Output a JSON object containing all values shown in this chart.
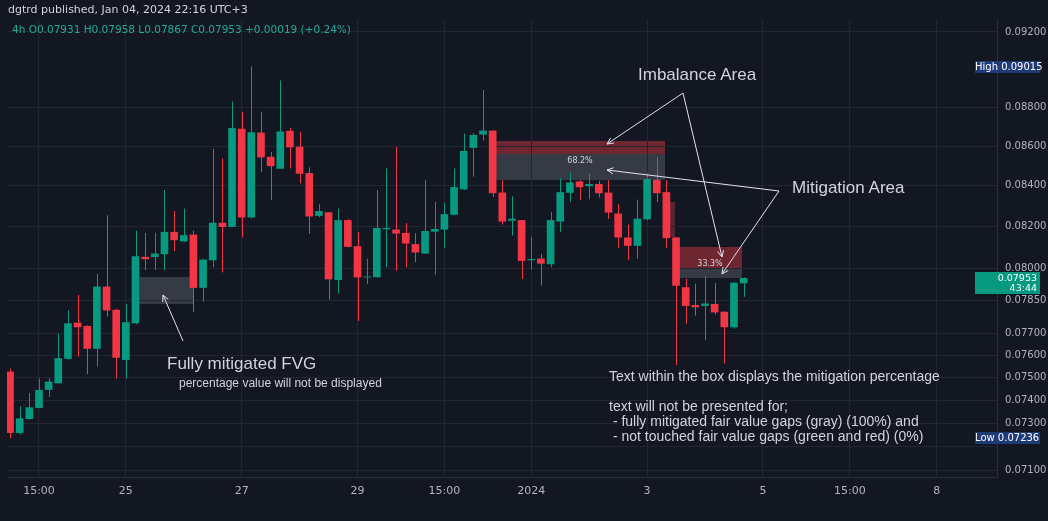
{
  "chart_data": {
    "type": "candlestick",
    "title": "4h O0.07931 H0.07958 L0.07867 C0.07953 +0.00019 (+0.24%)",
    "subtitle": "dgtrd published, Jan 04, 2024 22:16 UTC+3",
    "x": [
      "2023-12-23T03:00",
      "2023-12-23T07:00",
      "2023-12-23T11:00",
      "2023-12-23T15:00",
      "2023-12-23T19:00",
      "2023-12-23T23:00",
      "2023-12-24T03:00",
      "2023-12-24T07:00",
      "2023-12-24T11:00",
      "2023-12-24T15:00",
      "2023-12-24T19:00",
      "2023-12-24T23:00",
      "2023-12-25T03:00",
      "2023-12-25T07:00",
      "2023-12-25T11:00",
      "2023-12-25T15:00",
      "2023-12-25T19:00",
      "2023-12-25T23:00",
      "2023-12-26T03:00",
      "2023-12-26T07:00",
      "2023-12-26T11:00",
      "2023-12-26T15:00",
      "2023-12-26T19:00",
      "2023-12-26T23:00",
      "2023-12-27T03:00",
      "2023-12-27T07:00",
      "2023-12-27T11:00",
      "2023-12-27T15:00",
      "2023-12-27T19:00",
      "2023-12-27T23:00",
      "2023-12-28T03:00",
      "2023-12-28T07:00",
      "2023-12-28T11:00",
      "2023-12-28T15:00",
      "2023-12-28T19:00",
      "2023-12-28T23:00",
      "2023-12-29T03:00",
      "2023-12-29T07:00",
      "2023-12-29T11:00",
      "2023-12-29T15:00",
      "2023-12-29T19:00",
      "2023-12-29T23:00",
      "2023-12-30T03:00",
      "2023-12-30T07:00",
      "2023-12-30T11:00",
      "2023-12-30T15:00",
      "2023-12-30T19:00",
      "2023-12-30T23:00",
      "2023-12-31T03:00",
      "2023-12-31T07:00",
      "2023-12-31T11:00",
      "2023-12-31T15:00",
      "2023-12-31T19:00",
      "2023-12-31T23:00",
      "2024-01-01T03:00",
      "2024-01-01T07:00",
      "2024-01-01T11:00",
      "2024-01-01T15:00",
      "2024-01-01T19:00",
      "2024-01-01T23:00",
      "2024-01-02T03:00",
      "2024-01-02T07:00",
      "2024-01-02T11:00",
      "2024-01-02T15:00",
      "2024-01-02T19:00",
      "2024-01-02T23:00",
      "2024-01-03T03:00",
      "2024-01-03T07:00",
      "2024-01-03T11:00",
      "2024-01-03T15:00",
      "2024-01-03T19:00",
      "2024-01-03T23:00",
      "2024-01-04T03:00",
      "2024-01-04T07:00",
      "2024-01-04T11:00",
      "2024-01-04T15:00",
      "2024-01-04T19:00"
    ],
    "ohlc": [
      [
        0.07525,
        0.0754,
        0.07236,
        0.0726
      ],
      [
        0.0726,
        0.07374,
        0.07252,
        0.0732
      ],
      [
        0.0732,
        0.07432,
        0.07318,
        0.07368
      ],
      [
        0.07368,
        0.07496,
        0.07365,
        0.07444
      ],
      [
        0.07447,
        0.07497,
        0.07415,
        0.07481
      ],
      [
        0.07476,
        0.07697,
        0.07475,
        0.07585
      ],
      [
        0.07585,
        0.07805,
        0.0758,
        0.07743
      ],
      [
        0.07746,
        0.07875,
        0.07593,
        0.07728
      ],
      [
        0.07731,
        0.07735,
        0.07515,
        0.0763
      ],
      [
        0.0763,
        0.07974,
        0.07548,
        0.07913
      ],
      [
        0.07913,
        0.08255,
        0.07775,
        0.07805
      ],
      [
        0.07805,
        0.0781,
        0.07496,
        0.0759
      ],
      [
        0.0758,
        0.07833,
        0.07496,
        0.07748
      ],
      [
        0.07746,
        0.0818,
        0.0774,
        0.08056
      ],
      [
        0.08053,
        0.0817,
        0.07992,
        0.08045
      ],
      [
        0.08055,
        0.0817,
        0.07992,
        0.08069
      ],
      [
        0.08069,
        0.08379,
        0.07992,
        0.08173
      ],
      [
        0.08173,
        0.08276,
        0.08082,
        0.08136
      ],
      [
        0.0813,
        0.08288,
        0.08125,
        0.08157
      ],
      [
        0.0816,
        0.0818,
        0.07797,
        0.0791
      ],
      [
        0.0791,
        0.08045,
        0.07845,
        0.0804
      ],
      [
        0.0804,
        0.08587,
        0.08005,
        0.08217
      ],
      [
        0.08217,
        0.08537,
        0.07981,
        0.082
      ],
      [
        0.082,
        0.0883,
        0.082,
        0.0869
      ],
      [
        0.08686,
        0.08776,
        0.08148,
        0.08246
      ],
      [
        0.08246,
        0.09015,
        0.0824,
        0.08669
      ],
      [
        0.08667,
        0.08776,
        0.08469,
        0.08544
      ],
      [
        0.08544,
        0.0857,
        0.08329,
        0.085
      ],
      [
        0.08487,
        0.0894,
        0.08487,
        0.08672
      ],
      [
        0.08676,
        0.08692,
        0.08487,
        0.08595
      ],
      [
        0.08595,
        0.08672,
        0.08412,
        0.08462
      ],
      [
        0.08462,
        0.08492,
        0.08165,
        0.08251
      ],
      [
        0.08254,
        0.08309,
        0.08246,
        0.08274
      ],
      [
        0.08268,
        0.0827,
        0.07854,
        0.0795
      ],
      [
        0.07947,
        0.08288,
        0.07882,
        0.0823
      ],
      [
        0.0823,
        0.08238,
        0.081,
        0.08104
      ],
      [
        0.08104,
        0.08173,
        0.07755,
        0.07959
      ],
      [
        0.07959,
        0.08045,
        0.07927,
        0.0796
      ],
      [
        0.0796,
        0.08379,
        0.07956,
        0.08192
      ],
      [
        0.08189,
        0.08487,
        0.08005,
        0.08192
      ],
      [
        0.08184,
        0.08595,
        0.07989,
        0.08168
      ],
      [
        0.08168,
        0.08217,
        0.08005,
        0.0812
      ],
      [
        0.08114,
        0.08168,
        0.08029,
        0.08077
      ],
      [
        0.08072,
        0.08428,
        0.08069,
        0.08177
      ],
      [
        0.08177,
        0.08321,
        0.0797,
        0.08187
      ],
      [
        0.08187,
        0.08316,
        0.08098,
        0.08259
      ],
      [
        0.08259,
        0.08487,
        0.08254,
        0.08392
      ],
      [
        0.08384,
        0.08663,
        0.08379,
        0.08573
      ],
      [
        0.08592,
        0.08666,
        0.08445,
        0.08655
      ],
      [
        0.0866,
        0.0889,
        0.08628,
        0.08677
      ],
      [
        0.08677,
        0.0868,
        0.08345,
        0.08365
      ],
      [
        0.08365,
        0.08428,
        0.0821,
        0.08226
      ],
      [
        0.0823,
        0.08348,
        0.08157,
        0.08237
      ],
      [
        0.0823,
        0.08232,
        0.0795,
        0.08037
      ],
      [
        0.0804,
        0.08149,
        0.07992,
        0.08043
      ],
      [
        0.08045,
        0.08069,
        0.07919,
        0.08024
      ],
      [
        0.08021,
        0.08271,
        0.08005,
        0.0823
      ],
      [
        0.08226,
        0.08437,
        0.08173,
        0.08367
      ],
      [
        0.08367,
        0.08465,
        0.0832,
        0.08415
      ],
      [
        0.0842,
        0.08428,
        0.08331,
        0.08395
      ],
      [
        0.084,
        0.08462,
        0.08333,
        0.08407
      ],
      [
        0.08408,
        0.08425,
        0.08342,
        0.08365
      ],
      [
        0.08365,
        0.08428,
        0.08238,
        0.0827
      ],
      [
        0.08262,
        0.08309,
        0.08098,
        0.08149
      ],
      [
        0.08146,
        0.0821,
        0.0804,
        0.08109
      ],
      [
        0.08109,
        0.08332,
        0.08045,
        0.08237
      ],
      [
        0.08237,
        0.08462,
        0.0823,
        0.08432
      ],
      [
        0.08428,
        0.08545,
        0.0832,
        0.08365
      ],
      [
        0.08367,
        0.08428,
        0.08098,
        0.08146
      ],
      [
        0.08146,
        0.0815,
        0.07556,
        0.0792
      ],
      [
        0.0791,
        0.07951,
        0.07743,
        0.07826
      ],
      [
        0.07827,
        0.07928,
        0.0778,
        0.0782
      ],
      [
        0.07826,
        0.07962,
        0.07667,
        0.07834
      ],
      [
        0.07832,
        0.07931,
        0.07784,
        0.07796
      ],
      [
        0.07796,
        0.078,
        0.07563,
        0.07728
      ],
      [
        0.07728,
        0.07935,
        0.0772,
        0.07931
      ],
      [
        0.07931,
        0.07958,
        0.07867,
        0.07953
      ]
    ],
    "colors": [
      "#f23645",
      "#089981",
      "#089981",
      "#089981",
      "#089981",
      "#089981",
      "#089981",
      "#f23645",
      "#f23645",
      "#089981",
      "#f23645",
      "#f23645",
      "#089981",
      "#089981",
      "#f23645",
      "#089981",
      "#089981",
      "#f23645",
      "#089981",
      "#f23645",
      "#089981",
      "#089981",
      "#f23645",
      "#089981",
      "#f23645",
      "#089981",
      "#f23645",
      "#f23645",
      "#089981",
      "#f23645",
      "#f23645",
      "#f23645",
      "#089981",
      "#f23645",
      "#089981",
      "#f23645",
      "#f23645",
      "#089981",
      "#089981",
      "#089981",
      "#f23645",
      "#f23645",
      "#f23645",
      "#089981",
      "#089981",
      "#089981",
      "#089981",
      "#089981",
      "#089981",
      "#089981",
      "#f23645",
      "#f23645",
      "#089981",
      "#f23645",
      "#089981",
      "#f23645",
      "#089981",
      "#089981",
      "#089981",
      "#f23645",
      "#089981",
      "#f23645",
      "#f23645",
      "#f23645",
      "#f23645",
      "#089981",
      "#089981",
      "#f23645",
      "#f23645",
      "#f23645",
      "#f23645",
      "#f23645",
      "#089981",
      "#f23645",
      "#f23645",
      "#089981",
      "#089981"
    ],
    "xlim": [
      "2023-12-23T01:45",
      "2024-01-09T04:00"
    ],
    "xticks": [
      {
        "value": "2023-12-23T15:00",
        "label": "15:00"
      },
      {
        "value": "2023-12-25T03:00",
        "label": "25"
      },
      {
        "value": "2023-12-27T03:00",
        "label": "27"
      },
      {
        "value": "2023-12-29T03:00",
        "label": "29"
      },
      {
        "value": "2023-12-30T15:00",
        "label": "15:00"
      },
      {
        "value": "2024-01-01T03:00",
        "label": "2024"
      },
      {
        "value": "2024-01-03T03:00",
        "label": "3"
      },
      {
        "value": "2024-01-05T03:00",
        "label": "5"
      },
      {
        "value": "2024-01-06T15:00",
        "label": "15:00"
      },
      {
        "value": "2024-01-08T03:00",
        "label": "8"
      }
    ],
    "ylim": [
      0.07072,
      0.09265
    ],
    "yticks": [
      {
        "value": 0.092,
        "label": "0.09200"
      },
      {
        "value": 0.088,
        "label": "0.08800"
      },
      {
        "value": 0.086,
        "label": "0.08600"
      },
      {
        "value": 0.084,
        "label": "0.08400"
      },
      {
        "value": 0.082,
        "label": "0.08200"
      },
      {
        "value": 0.08,
        "label": "0.08000"
      },
      {
        "value": 0.0785,
        "label": "0.07850"
      },
      {
        "value": 0.077,
        "label": "0.07700"
      },
      {
        "value": 0.076,
        "label": "0.07600"
      },
      {
        "value": 0.075,
        "label": "0.07500"
      },
      {
        "value": 0.074,
        "label": "0.07400"
      },
      {
        "value": 0.073,
        "label": "0.07300"
      },
      {
        "value": 0.072,
        "label": null
      },
      {
        "value": 0.071,
        "label": "0.07100"
      }
    ],
    "log": "y",
    "grid": true,
    "annotations": [
      "High 0.09015",
      "Low 0.07236",
      "0.07953\n43:44",
      "68.2%",
      "33.3%",
      "Imbalance Area",
      "Mitigation Area",
      "Fully mitigated FVG",
      "percentage value will not be displayed",
      "Text within the box displays the mitigation percentage",
      "text will not be presented for;",
      " - fully mitigated fair value gaps (gray) (100%) and",
      " - not touched fair value gaps (green and red) (0%)"
    ]
  }
}
